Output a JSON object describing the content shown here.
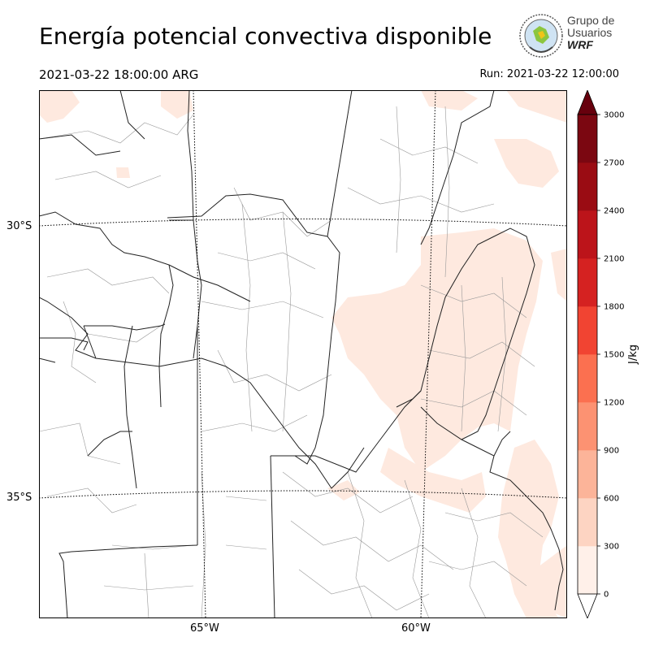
{
  "title": "Energía potencial convectiva disponible",
  "valid_time": "2021-03-22 18:00:00 ARG",
  "run_time": "Run: 2021-03-22 12:00:00",
  "logo": {
    "line1": "Grupo de",
    "line2": "Usuarios",
    "line3": "WRF"
  },
  "map": {
    "lat_labels": [
      "30°S",
      "35°S"
    ],
    "lon_labels": [
      "65°W",
      "60°W"
    ],
    "fill_color": "#fee9df",
    "border_color": "#222222",
    "dept_color": "#999999",
    "grid_color": "#000000"
  },
  "colorbar": {
    "unit": "J/kg",
    "ticks": [
      "0",
      "300",
      "600",
      "900",
      "1200",
      "1500",
      "1800",
      "2100",
      "2400",
      "2700",
      "3000"
    ],
    "colors": [
      "#fff0e9",
      "#fdd4c2",
      "#fcb499",
      "#fc9272",
      "#fb7050",
      "#f14432",
      "#d52221",
      "#bc141a",
      "#9a0c13",
      "#7b0711"
    ],
    "under_color": "#ffffff",
    "over_color": "#67000d"
  }
}
